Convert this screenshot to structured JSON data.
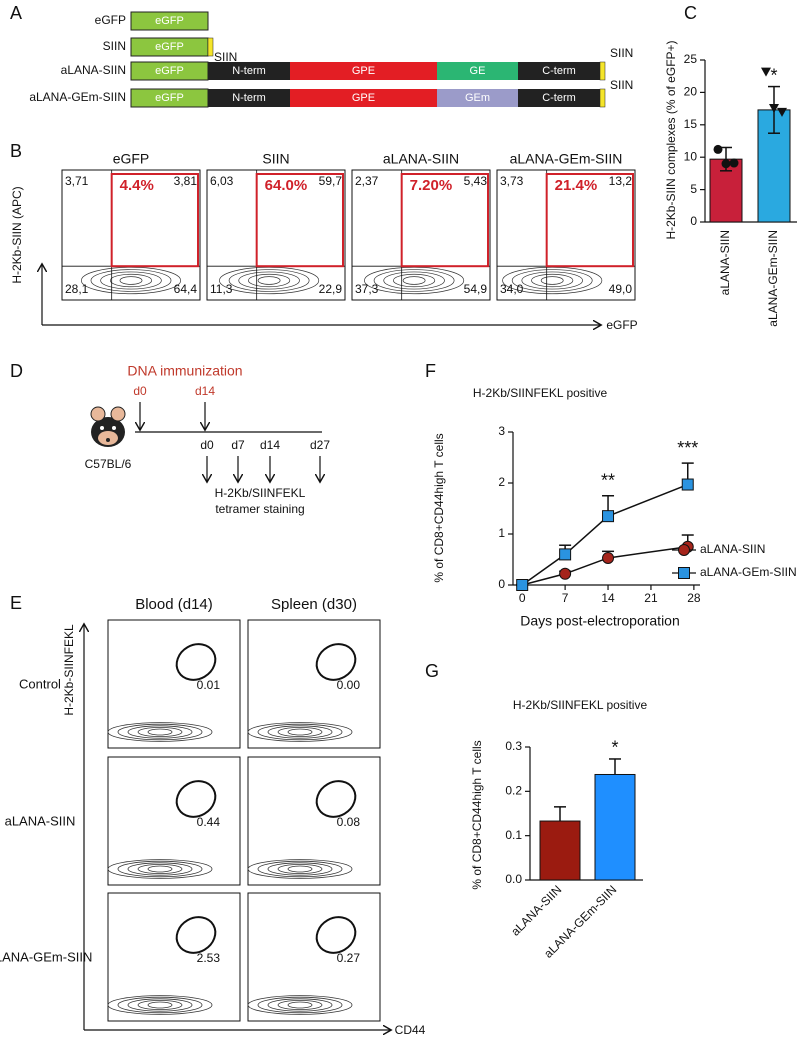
{
  "panel_labels": [
    "A",
    "B",
    "C",
    "D",
    "E",
    "F",
    "G"
  ],
  "constructs": {
    "rows": [
      {
        "name": "eGFP",
        "segments": [
          "eGFP"
        ]
      },
      {
        "name": "SIIN",
        "segments": [
          "eGFP"
        ]
      },
      {
        "name": "aLANA-SIIN",
        "segments": [
          "eGFP",
          "N-term",
          "GPE",
          "GE",
          "C-term"
        ]
      },
      {
        "name": "aLANA-GEm-SIIN",
        "segments": [
          "eGFP",
          "N-term",
          "GPE",
          "GEm",
          "C-term"
        ]
      }
    ],
    "tail_labels": [
      "SIIN",
      "SIIN",
      "SIIN"
    ]
  },
  "flow_b": {
    "ylabel": "H-2Kb-SIIN (APC)",
    "xlabel": "eGFP",
    "plots": [
      {
        "title": "eGFP",
        "gate": "4.4%",
        "quadrants": [
          "3,71",
          "3,81",
          "28,1",
          "64,4"
        ]
      },
      {
        "title": "SIIN",
        "gate": "64.0%",
        "quadrants": [
          "6,03",
          "59,7",
          "11,3",
          "22,9"
        ]
      },
      {
        "title": "aLANA-SIIN",
        "gate": "7.20%",
        "quadrants": [
          "2,37",
          "5,43",
          "37,3",
          "54,9"
        ]
      },
      {
        "title": "aLANA-GEm-SIIN",
        "gate": "21.4%",
        "quadrants": [
          "3,73",
          "13,2",
          "34,0",
          "49,0"
        ]
      }
    ]
  },
  "timeline": {
    "title": "DNA immunization",
    "strain": "C57BL/6",
    "immunizations": [
      "d0",
      "d14"
    ],
    "samplings": [
      "d0",
      "d7",
      "d14",
      "d27"
    ],
    "readout": [
      "H-2Kb/SIINFEKL",
      "tetramer staining"
    ]
  },
  "flow_e": {
    "columns": [
      "Blood (d14)",
      "Spleen (d30)"
    ],
    "rows": [
      {
        "name": "Control",
        "gates": [
          "0.01",
          "0.00"
        ]
      },
      {
        "name": "aLANA-SIIN",
        "gates": [
          "0.44",
          "0.08"
        ]
      },
      {
        "name": "aLANA-GEm-SIIN",
        "gates": [
          "2.53",
          "0.27"
        ]
      }
    ],
    "ylabel": "H-2Kb-SIINFEKL",
    "xlabel": "CD44"
  },
  "chart_data": [
    {
      "type": "bar",
      "ylabel": "H-2Kb-SIIN complexes (% of eGFP+)",
      "categories": [
        "aLANA-SIIN",
        "aLANA-GEm-SIIN"
      ],
      "values": [
        9.7,
        17.3
      ],
      "errors": [
        1.8,
        3.6
      ],
      "points": [
        [
          11.2,
          9.0,
          9.1
        ],
        [
          23.2,
          17.6,
          17.0
        ]
      ],
      "colors": [
        "#c8203a",
        "#2aa9e0"
      ],
      "ylim": [
        0,
        25
      ],
      "yticks": [
        0,
        5,
        10,
        15,
        20,
        25
      ],
      "annotation": "*"
    },
    {
      "type": "line",
      "title": "H-2Kb/SIINFEKL positive",
      "xlabel": "Days post-electroporation",
      "ylabel": "% of CD8+CD44high T cells",
      "x": [
        0,
        7,
        14,
        27
      ],
      "series": [
        {
          "name": "aLANA-SIIN",
          "color": "#a5241b",
          "marker": "circle",
          "values": [
            0,
            0.22,
            0.53,
            0.75
          ],
          "errors": [
            0,
            0.05,
            0.13,
            0.23
          ]
        },
        {
          "name": "aLANA-GEm-SIIN",
          "color": "#2a93e0",
          "marker": "square",
          "values": [
            0,
            0.6,
            1.35,
            1.97
          ],
          "errors": [
            0,
            0.18,
            0.4,
            0.42
          ]
        }
      ],
      "xlim": [
        -1.5,
        29
      ],
      "xticks": [
        0,
        7,
        14,
        21,
        28
      ],
      "ylim": [
        0,
        3
      ],
      "yticks": [
        0,
        1,
        2,
        3
      ],
      "annotations": [
        "**",
        "***"
      ]
    },
    {
      "type": "bar",
      "title": "H-2Kb/SIINFEKL positive",
      "ylabel": "% of CD8+CD44high T cells",
      "categories": [
        "aLANA-SIIN",
        "aLANA-GEm-SIIN"
      ],
      "values": [
        0.133,
        0.238
      ],
      "errors": [
        0.032,
        0.035
      ],
      "colors": [
        "#9b1b10",
        "#1f8fff"
      ],
      "ylim": [
        0,
        0.3
      ],
      "yticks": [
        {
          "value": 0,
          "label": "0.0"
        },
        0.1,
        0.2,
        0.3
      ],
      "annotation": "*"
    }
  ]
}
